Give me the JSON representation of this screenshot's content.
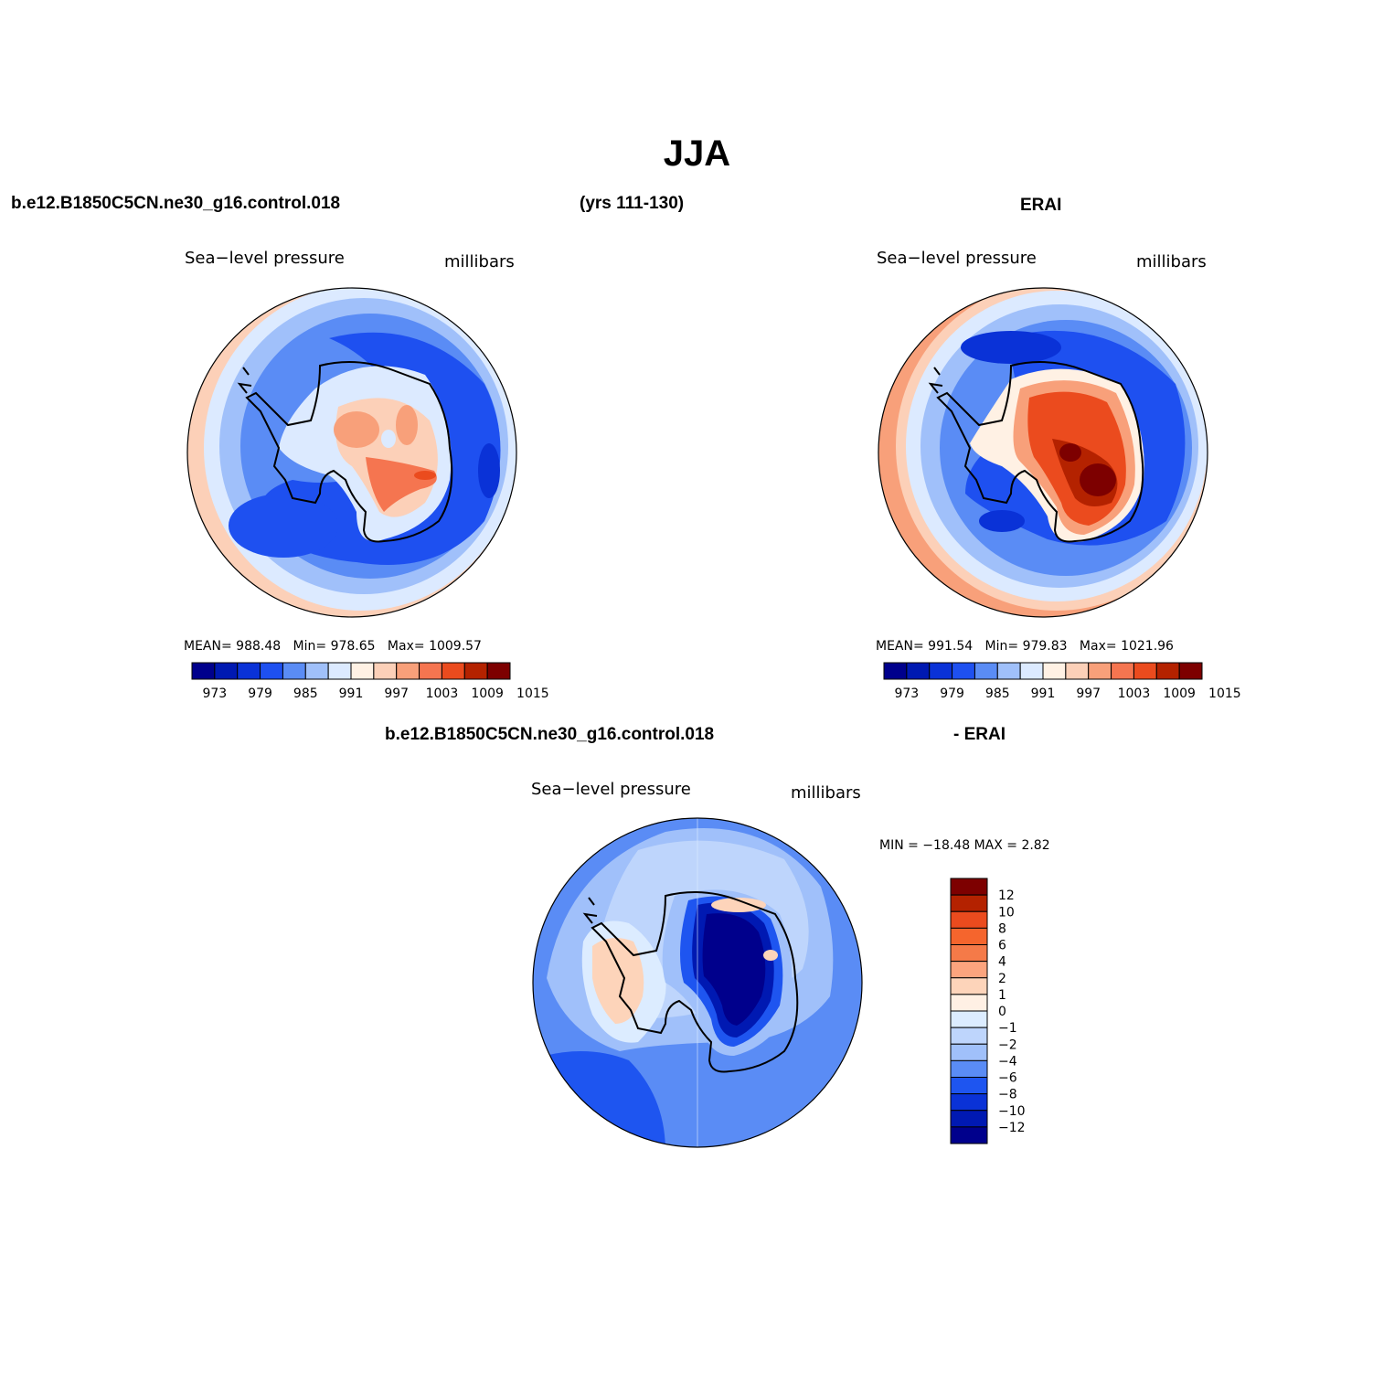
{
  "title": "JJA",
  "header": {
    "left": "b.e12.B1850C5CN.ne30_g16.control.018",
    "center": "(yrs 111-130)",
    "right": "ERAI"
  },
  "diff_header": {
    "left": "b.e12.B1850C5CN.ne30_g16.control.018",
    "right": "- ERAI"
  },
  "panels": [
    {
      "name": "model",
      "variable": "Sea−level pressure",
      "units": "millibars",
      "stats": {
        "mean_label": "MEAN=",
        "mean": "988.48",
        "min_label": "Min=",
        "min": "978.65",
        "max_label": "Max=",
        "max": "1009.57"
      }
    },
    {
      "name": "erai",
      "variable": "Sea−level pressure",
      "units": "millibars",
      "stats": {
        "mean_label": "MEAN=",
        "mean": "991.54",
        "min_label": "Min=",
        "min": "979.83",
        "max_label": "Max=",
        "max": "1021.96"
      }
    },
    {
      "name": "difference",
      "variable": "Sea−level pressure",
      "units": "millibars",
      "stats_text": "MIN = −18.48 MAX =    2.82"
    }
  ],
  "colorbar_abs": {
    "colors": [
      "#00008c",
      "#0019b2",
      "#0a32d7",
      "#1e50f0",
      "#5a8cf5",
      "#a0c0fa",
      "#dceaff",
      "#fff1e4",
      "#fcd0b8",
      "#f8a07a",
      "#f57550",
      "#eb4b1e",
      "#b42200",
      "#7d0000"
    ],
    "tick_labels": [
      "973",
      "979",
      "985",
      "991",
      "997",
      "1003",
      "1009",
      "1015"
    ]
  },
  "colorbar_diff": {
    "colors": [
      "#7d0000",
      "#b42200",
      "#eb4b1e",
      "#f5652d",
      "#f57a48",
      "#fca47e",
      "#fdd4ba",
      "#fff0e4",
      "#dcecff",
      "#bed5fc",
      "#a0c0fa",
      "#5a8cf5",
      "#1e55f0",
      "#0a32d7",
      "#0019b2",
      "#00008c"
    ],
    "tick_labels": [
      "12",
      "10",
      "8",
      "6",
      "4",
      "2",
      "1",
      "0",
      "−1",
      "−2",
      "−4",
      "−6",
      "−8",
      "−10",
      "−12"
    ]
  }
}
